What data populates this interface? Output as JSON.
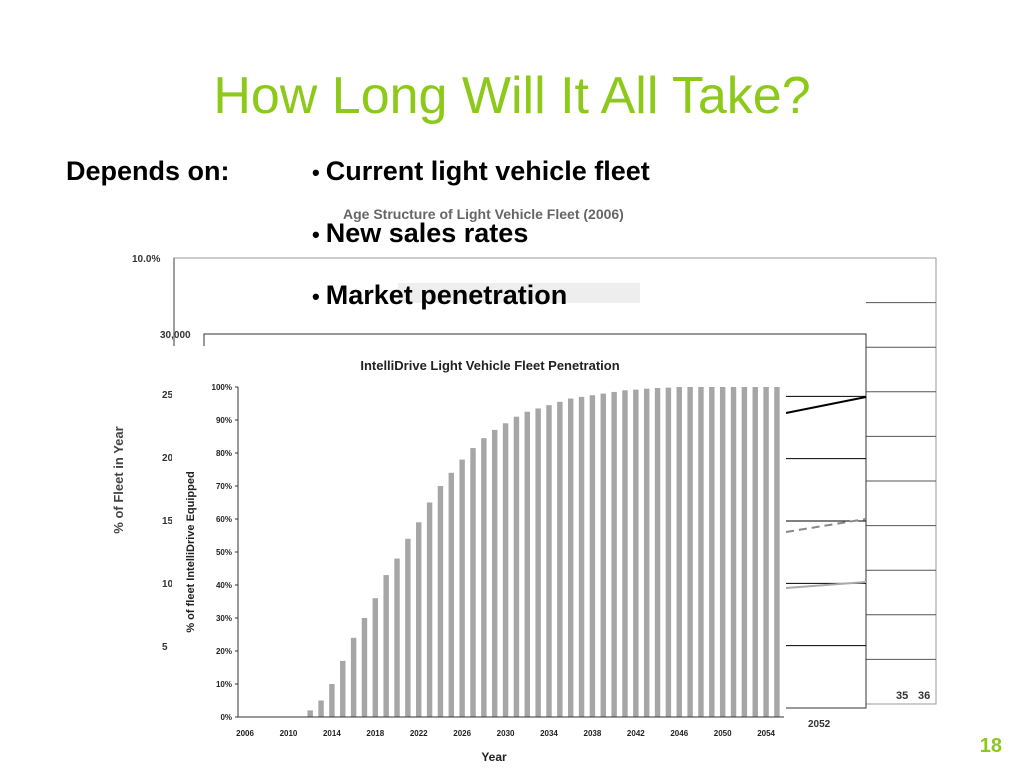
{
  "slide": {
    "title": "How Long Will It All Take?",
    "depends_label": "Depends on:",
    "bullets": [
      "Current light vehicle fleet",
      "New sales rates",
      "Market penetration"
    ],
    "page_number": "18",
    "title_color": "#8cc919"
  },
  "background_charts": {
    "age_chart_title": "Age Structure of Light Vehicle Fleet (2006)",
    "age_y_label": "% of Fleet in Year",
    "age_y_top_tick": "10.0%",
    "age_x_ticks": [
      "35",
      "36"
    ],
    "sales_y_top_tick": "30,000",
    "sales_y_ticks_partial": [
      "25",
      "20",
      "15",
      "10",
      "5"
    ],
    "sales_x_tick": "2052"
  },
  "chart_data": {
    "type": "bar",
    "title": "IntelliDrive Light Vehicle Fleet Penetration",
    "xlabel": "Year",
    "ylabel": "% of fleet IntelliDrive Equipped",
    "ylim": [
      0,
      100
    ],
    "yticks": [
      "0%",
      "10%",
      "20%",
      "30%",
      "40%",
      "50%",
      "60%",
      "70%",
      "80%",
      "90%",
      "100%"
    ],
    "xtick_labels": [
      "2006",
      "2010",
      "2014",
      "2018",
      "2022",
      "2026",
      "2030",
      "2034",
      "2038",
      "2042",
      "2046",
      "2050",
      "2054"
    ],
    "bar_color": "#a6a6a6",
    "x": [
      2006,
      2007,
      2008,
      2009,
      2010,
      2011,
      2012,
      2013,
      2014,
      2015,
      2016,
      2017,
      2018,
      2019,
      2020,
      2021,
      2022,
      2023,
      2024,
      2025,
      2026,
      2027,
      2028,
      2029,
      2030,
      2031,
      2032,
      2033,
      2034,
      2035,
      2036,
      2037,
      2038,
      2039,
      2040,
      2041,
      2042,
      2043,
      2044,
      2045,
      2046,
      2047,
      2048,
      2049,
      2050,
      2051,
      2052,
      2053,
      2054,
      2055
    ],
    "values": [
      0,
      0,
      0,
      0,
      0,
      0,
      2,
      5,
      10,
      17,
      24,
      30,
      36,
      43,
      48,
      54,
      59,
      65,
      70,
      74,
      78,
      81.5,
      84.5,
      87,
      89,
      91,
      92.5,
      93.5,
      94.5,
      95.5,
      96.5,
      97,
      97.5,
      98,
      98.5,
      99,
      99.2,
      99.5,
      99.7,
      99.8,
      100,
      100,
      100,
      100,
      100,
      100,
      100,
      100,
      100,
      100
    ]
  }
}
